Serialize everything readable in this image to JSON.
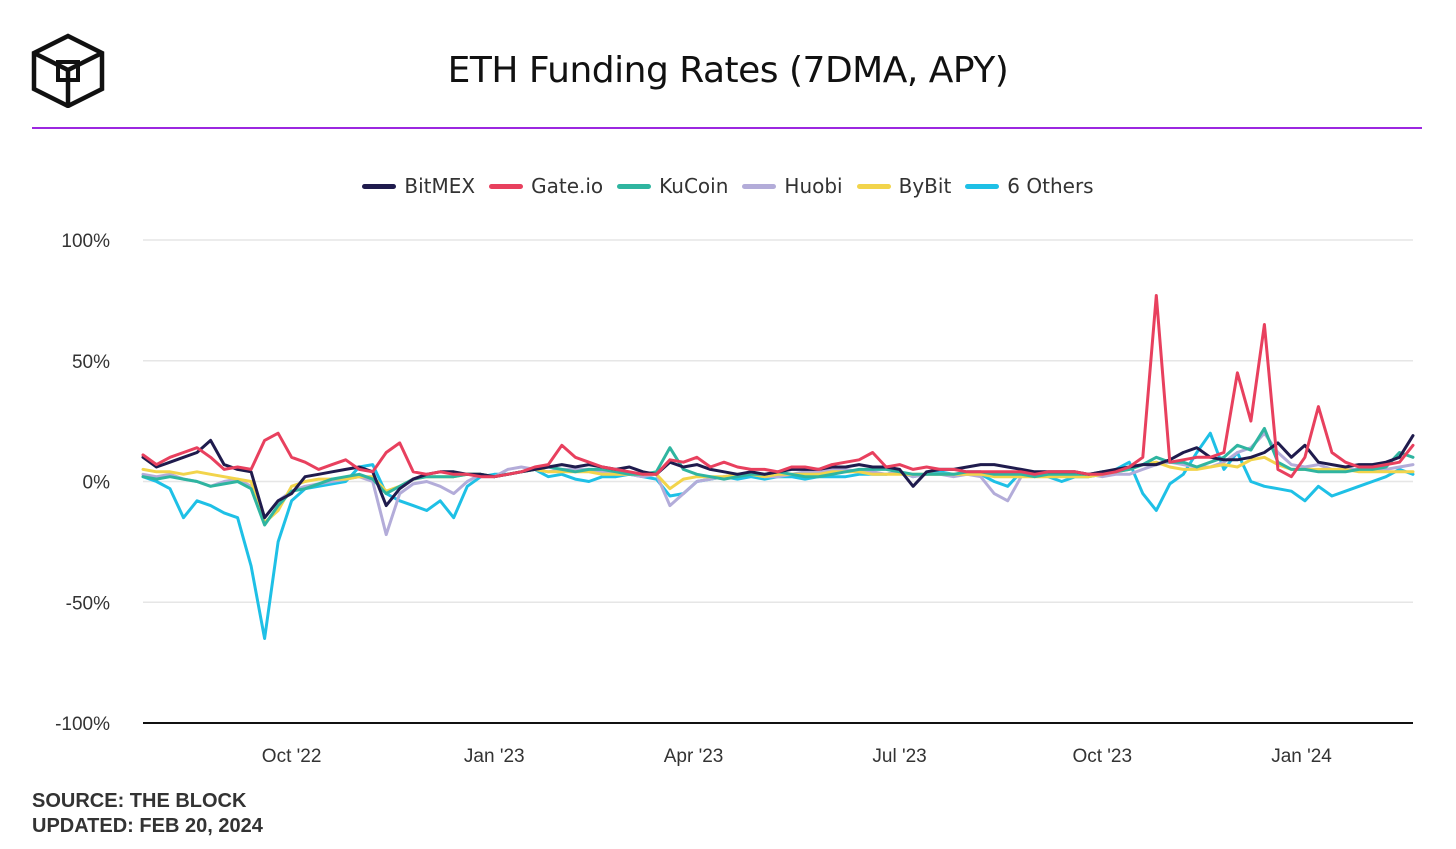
{
  "header": {
    "title": "ETH Funding Rates (7DMA, APY)"
  },
  "colors": {
    "accent": "#9c27e0",
    "axis": "#111111",
    "grid": "#e6e6e6"
  },
  "footer": {
    "source": "SOURCE: THE BLOCK",
    "updated": "UPDATED: FEB 20, 2024"
  },
  "chart_data": {
    "type": "line",
    "title": "ETH Funding Rates (7DMA, APY)",
    "xlabel": "",
    "ylabel": "",
    "x_range": [
      0,
      18.8
    ],
    "ylim": [
      -100,
      100
    ],
    "yticks": [
      {
        "value": 100,
        "label": "100%"
      },
      {
        "value": 50,
        "label": "50%"
      },
      {
        "value": 0,
        "label": "0%"
      },
      {
        "value": -50,
        "label": "-50%"
      },
      {
        "value": -100,
        "label": "-100%"
      }
    ],
    "xticks": [
      {
        "value": 2.2,
        "label": "Oct '22"
      },
      {
        "value": 5.2,
        "label": "Jan '23"
      },
      {
        "value": 8.15,
        "label": "Apr '23"
      },
      {
        "value": 11.2,
        "label": "Jul '23"
      },
      {
        "value": 14.2,
        "label": "Oct '23"
      },
      {
        "value": 17.15,
        "label": "Jan '24"
      }
    ],
    "x": [
      0.0,
      0.2,
      0.4,
      0.6,
      0.8,
      1.0,
      1.2,
      1.4,
      1.6,
      1.8,
      2.0,
      2.2,
      2.4,
      2.6,
      2.8,
      3.0,
      3.2,
      3.4,
      3.6,
      3.8,
      4.0,
      4.2,
      4.4,
      4.6,
      4.8,
      5.0,
      5.2,
      5.4,
      5.6,
      5.8,
      6.0,
      6.2,
      6.4,
      6.6,
      6.8,
      7.0,
      7.2,
      7.4,
      7.6,
      7.8,
      8.0,
      8.2,
      8.4,
      8.6,
      8.8,
      9.0,
      9.2,
      9.4,
      9.6,
      9.8,
      10.0,
      10.2,
      10.4,
      10.6,
      10.8,
      11.0,
      11.2,
      11.4,
      11.6,
      11.8,
      12.0,
      12.2,
      12.4,
      12.6,
      12.8,
      13.0,
      13.2,
      13.4,
      13.6,
      13.8,
      14.0,
      14.2,
      14.4,
      14.6,
      14.8,
      15.0,
      15.2,
      15.4,
      15.6,
      15.8,
      16.0,
      16.2,
      16.4,
      16.6,
      16.8,
      17.0,
      17.2,
      17.4,
      17.6,
      17.8,
      18.0,
      18.2,
      18.4,
      18.6,
      18.8
    ],
    "series": [
      {
        "name": "BitMEX",
        "color": "#1f1b4d",
        "values": [
          10,
          6,
          8,
          10,
          12,
          17,
          7,
          5,
          4,
          -15,
          -8,
          -5,
          2,
          3,
          4,
          5,
          6,
          4,
          -10,
          -3,
          1,
          3,
          4,
          4,
          3,
          3,
          2,
          3,
          4,
          5,
          6,
          7,
          6,
          7,
          6,
          5,
          6,
          4,
          3,
          8,
          6,
          7,
          5,
          4,
          3,
          4,
          3,
          4,
          5,
          5,
          5,
          6,
          6,
          7,
          6,
          6,
          5,
          -2,
          4,
          5,
          5,
          6,
          7,
          7,
          6,
          5,
          4,
          4,
          4,
          4,
          3,
          4,
          5,
          6,
          7,
          7,
          9,
          12,
          14,
          10,
          9,
          9,
          10,
          12,
          16,
          10,
          15,
          8,
          7,
          6,
          7,
          7,
          8,
          10,
          19
        ]
      },
      {
        "name": "Gate.io",
        "color": "#e8405e",
        "values": [
          11,
          7,
          10,
          12,
          14,
          10,
          5,
          6,
          5,
          17,
          20,
          10,
          8,
          5,
          7,
          9,
          5,
          4,
          12,
          16,
          4,
          3,
          4,
          3,
          3,
          2,
          2,
          3,
          4,
          6,
          7,
          15,
          10,
          8,
          6,
          5,
          4,
          3,
          3,
          9,
          8,
          10,
          6,
          8,
          6,
          5,
          5,
          4,
          6,
          6,
          5,
          7,
          8,
          9,
          12,
          6,
          7,
          5,
          6,
          5,
          5,
          4,
          4,
          4,
          4,
          4,
          3,
          4,
          4,
          4,
          3,
          3,
          4,
          6,
          10,
          77,
          8,
          9,
          10,
          10,
          12,
          45,
          25,
          65,
          5,
          2,
          10,
          31,
          12,
          8,
          6,
          6,
          7,
          8,
          15
        ]
      },
      {
        "name": "KuCoin",
        "color": "#2fb5a0",
        "values": [
          2,
          1,
          2,
          1,
          0,
          -2,
          -1,
          0,
          -3,
          -18,
          -10,
          -4,
          -3,
          -1,
          1,
          2,
          3,
          1,
          -5,
          -2,
          1,
          2,
          2,
          2,
          3,
          3,
          2,
          3,
          4,
          5,
          6,
          5,
          4,
          5,
          5,
          4,
          3,
          3,
          4,
          14,
          5,
          3,
          2,
          1,
          2,
          3,
          3,
          4,
          3,
          2,
          2,
          3,
          4,
          5,
          5,
          5,
          4,
          3,
          3,
          3,
          3,
          4,
          4,
          3,
          3,
          3,
          2,
          3,
          3,
          3,
          3,
          4,
          4,
          5,
          7,
          10,
          8,
          8,
          6,
          8,
          10,
          15,
          13,
          22,
          8,
          5,
          5,
          4,
          4,
          4,
          5,
          5,
          6,
          12,
          10
        ]
      },
      {
        "name": "Huobi",
        "color": "#b3acd9",
        "values": [
          3,
          2,
          3,
          1,
          0,
          -2,
          0,
          1,
          -2,
          -15,
          -8,
          -4,
          -2,
          -1,
          0,
          1,
          2,
          0,
          -22,
          -5,
          -1,
          0,
          -2,
          -5,
          0,
          3,
          2,
          5,
          6,
          5,
          4,
          5,
          5,
          5,
          4,
          3,
          3,
          2,
          3,
          -10,
          -5,
          0,
          1,
          2,
          3,
          3,
          2,
          2,
          3,
          4,
          4,
          5,
          5,
          4,
          4,
          3,
          4,
          2,
          3,
          3,
          2,
          3,
          2,
          -5,
          -8,
          2,
          3,
          3,
          3,
          3,
          3,
          2,
          3,
          3,
          5,
          7,
          8,
          7,
          6,
          6,
          8,
          12,
          14,
          20,
          12,
          7,
          6,
          7,
          5,
          5,
          5,
          5,
          5,
          6,
          7
        ]
      },
      {
        "name": "ByBit",
        "color": "#f2d44b",
        "values": [
          5,
          4,
          4,
          3,
          4,
          3,
          2,
          1,
          0,
          -17,
          -12,
          -2,
          0,
          1,
          1,
          1,
          2,
          2,
          -4,
          -2,
          1,
          2,
          2,
          2,
          3,
          3,
          2,
          3,
          4,
          5,
          4,
          4,
          4,
          4,
          3,
          3,
          3,
          3,
          3,
          -3,
          1,
          2,
          2,
          2,
          3,
          3,
          2,
          3,
          3,
          3,
          3,
          4,
          4,
          4,
          3,
          3,
          3,
          3,
          3,
          3,
          3,
          3,
          3,
          2,
          2,
          2,
          2,
          2,
          2,
          2,
          2,
          3,
          4,
          5,
          7,
          8,
          6,
          5,
          5,
          6,
          7,
          6,
          9,
          10,
          7,
          5,
          5,
          5,
          5,
          5,
          4,
          4,
          4,
          4,
          4
        ]
      },
      {
        "name": "6 Others",
        "color": "#1ec0e6",
        "values": [
          2,
          0,
          -3,
          -15,
          -8,
          -10,
          -13,
          -15,
          -35,
          -65,
          -25,
          -8,
          -3,
          -2,
          -1,
          0,
          6,
          7,
          -5,
          -8,
          -10,
          -12,
          -8,
          -15,
          -2,
          2,
          3,
          3,
          4,
          5,
          2,
          3,
          1,
          0,
          2,
          2,
          3,
          2,
          1,
          -6,
          -5,
          0,
          1,
          2,
          1,
          2,
          1,
          2,
          2,
          1,
          2,
          2,
          2,
          3,
          3,
          3,
          4,
          2,
          3,
          4,
          3,
          3,
          3,
          0,
          -2,
          4,
          3,
          2,
          0,
          2,
          2,
          3,
          5,
          8,
          -5,
          -12,
          -1,
          3,
          12,
          20,
          5,
          12,
          0,
          -2,
          -3,
          -4,
          -8,
          -2,
          -6,
          -4,
          -2,
          0,
          2,
          5,
          3
        ]
      }
    ]
  }
}
